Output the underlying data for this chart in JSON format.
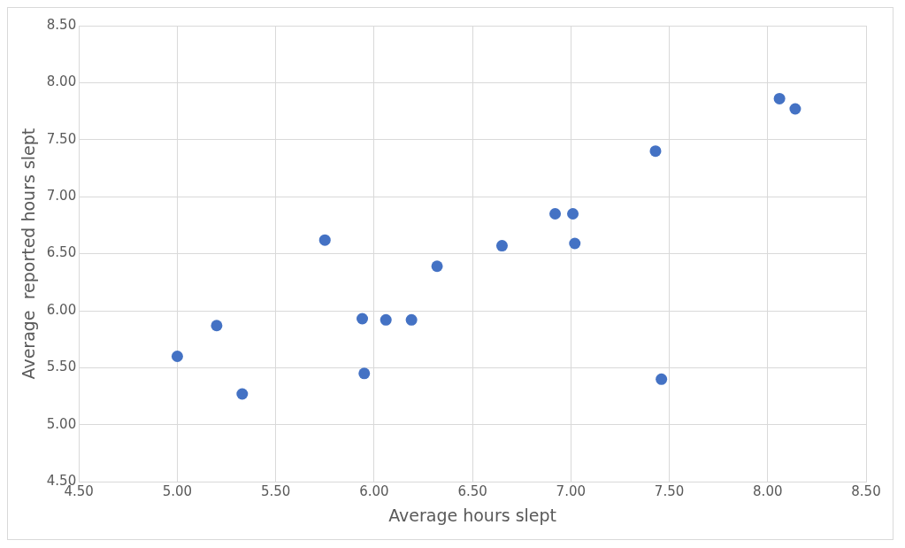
{
  "chart_data": {
    "type": "scatter",
    "xlabel": "Average hours slept",
    "ylabel": "Average  reported hours slept",
    "marker": "circle",
    "grid": true,
    "legend": false,
    "x": [
      5.0,
      5.2,
      5.33,
      5.75,
      5.94,
      5.95,
      6.06,
      6.19,
      6.32,
      6.65,
      6.92,
      7.01,
      7.02,
      7.43,
      7.46,
      8.06,
      8.14
    ],
    "series": [
      {
        "color": "#4472c4",
        "values": [
          5.6,
          5.87,
          5.27,
          6.62,
          5.93,
          5.45,
          5.92,
          5.92,
          6.39,
          6.57,
          6.85,
          6.85,
          6.59,
          7.4,
          5.4,
          7.86,
          7.77
        ]
      }
    ],
    "xlim": [
      4.5,
      8.5
    ],
    "ylim": [
      4.5,
      8.5
    ],
    "xticks": [
      {
        "value": 4.5,
        "label": "4.50"
      },
      {
        "value": 5,
        "label": "5.00"
      },
      {
        "value": 5.5,
        "label": "5.50"
      },
      {
        "value": 6,
        "label": "6.00"
      },
      {
        "value": 6.5,
        "label": "6.50"
      },
      {
        "value": 7,
        "label": "7.00"
      },
      {
        "value": 7.5,
        "label": "7.50"
      },
      {
        "value": 8,
        "label": "8.00"
      },
      {
        "value": 8.5,
        "label": "8.50"
      }
    ],
    "yticks": [
      {
        "value": 4.5,
        "label": "4.50"
      },
      {
        "value": 5,
        "label": "5.00"
      },
      {
        "value": 5.5,
        "label": "5.50"
      },
      {
        "value": 6,
        "label": "6.00"
      },
      {
        "value": 6.5,
        "label": "6.50"
      },
      {
        "value": 7,
        "label": "7.00"
      },
      {
        "value": 7.5,
        "label": "7.50"
      },
      {
        "value": 8,
        "label": "8.00"
      },
      {
        "value": 8.5,
        "label": "8.50"
      }
    ]
  }
}
